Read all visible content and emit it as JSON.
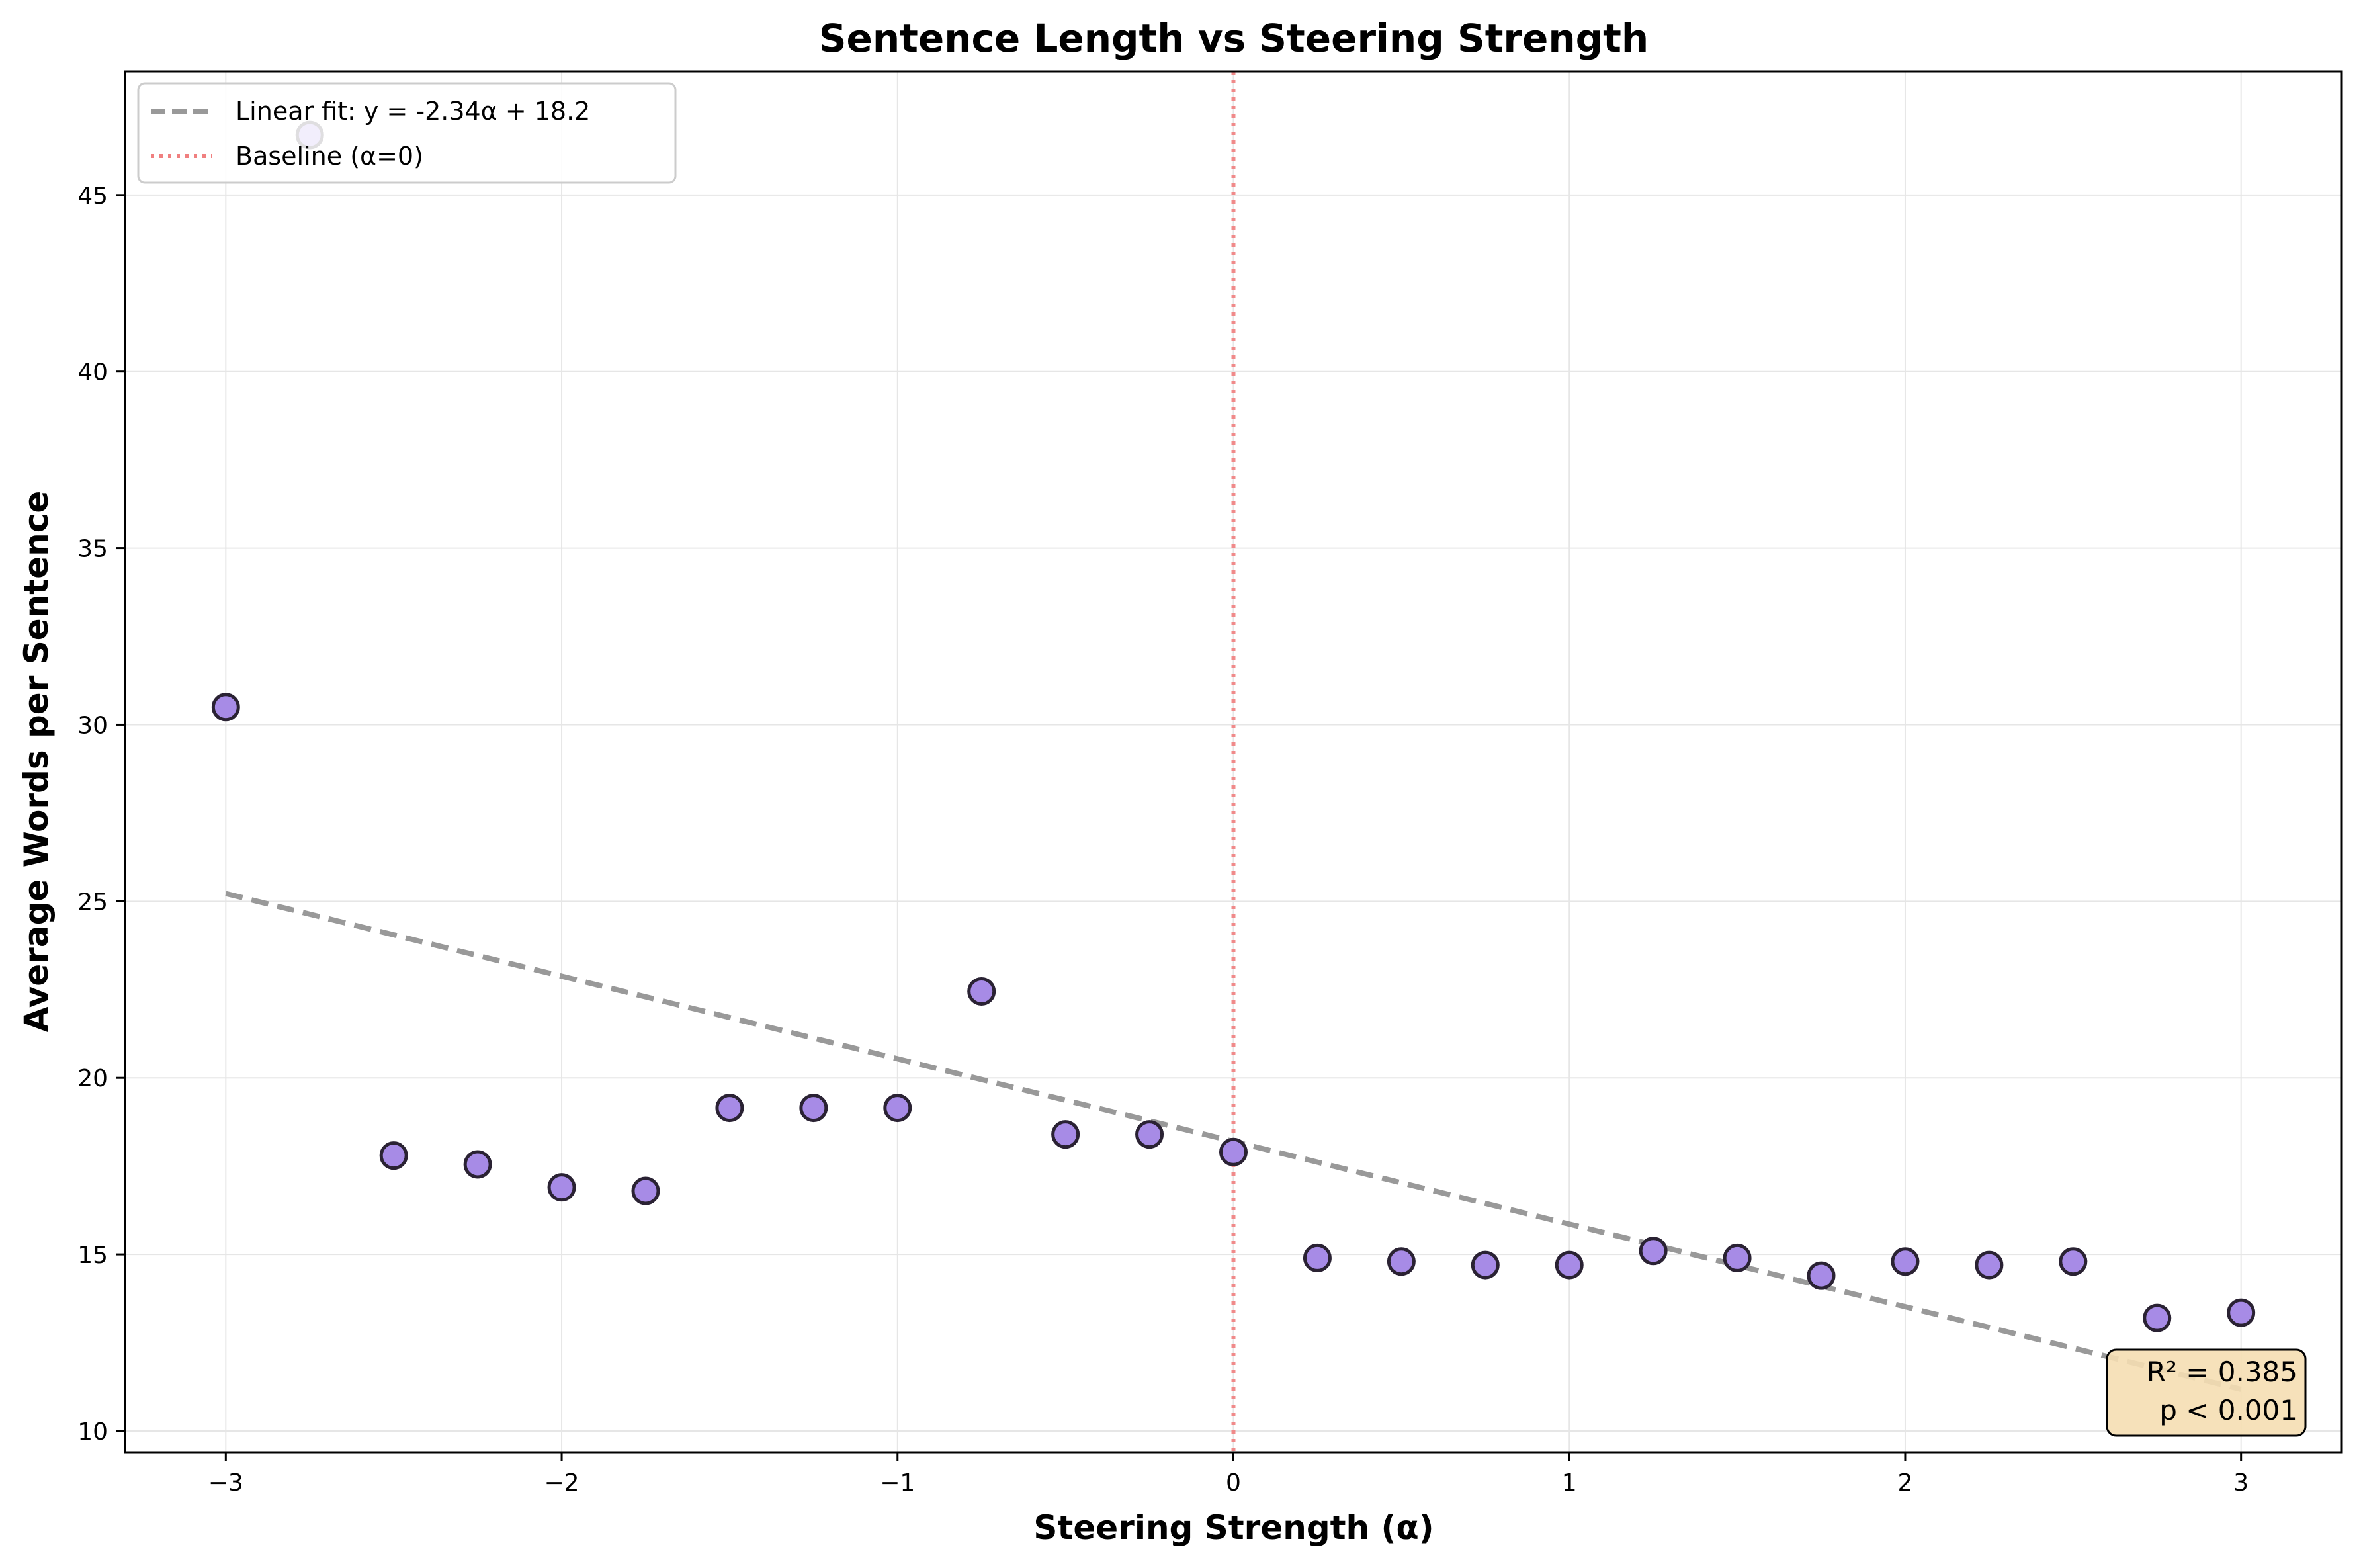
{
  "chart_data": {
    "type": "scatter",
    "title": "Sentence Length vs Steering Strength",
    "xlabel": "Steering Strength (α)",
    "ylabel": "Average Words per Sentence",
    "xlim": [
      -3.3,
      3.3
    ],
    "ylim": [
      9.4,
      48.5
    ],
    "x_ticks": [
      -3,
      -2,
      -1,
      0,
      1,
      2,
      3
    ],
    "x_tick_labels": [
      "−3",
      "−2",
      "−1",
      "0",
      "1",
      "2",
      "3"
    ],
    "y_ticks": [
      10,
      15,
      20,
      25,
      30,
      35,
      40,
      45
    ],
    "y_tick_labels": [
      "10",
      "15",
      "20",
      "25",
      "30",
      "35",
      "40",
      "45"
    ],
    "grid": true,
    "legend_position": "top-left",
    "points": [
      {
        "x": -3.0,
        "y": 30.5
      },
      {
        "x": -2.75,
        "y": 46.7
      },
      {
        "x": -2.5,
        "y": 17.8
      },
      {
        "x": -2.25,
        "y": 17.55
      },
      {
        "x": -2.0,
        "y": 16.9
      },
      {
        "x": -1.75,
        "y": 16.8
      },
      {
        "x": -1.5,
        "y": 19.15
      },
      {
        "x": -1.25,
        "y": 19.15
      },
      {
        "x": -1.0,
        "y": 19.15
      },
      {
        "x": -0.75,
        "y": 22.45
      },
      {
        "x": -0.5,
        "y": 18.4
      },
      {
        "x": -0.25,
        "y": 18.4
      },
      {
        "x": 0.0,
        "y": 17.9
      },
      {
        "x": 0.25,
        "y": 14.9
      },
      {
        "x": 0.5,
        "y": 14.8
      },
      {
        "x": 0.75,
        "y": 14.7
      },
      {
        "x": 1.0,
        "y": 14.7
      },
      {
        "x": 1.25,
        "y": 15.1
      },
      {
        "x": 1.5,
        "y": 14.9
      },
      {
        "x": 1.75,
        "y": 14.4
      },
      {
        "x": 2.0,
        "y": 14.8
      },
      {
        "x": 2.25,
        "y": 14.7
      },
      {
        "x": 2.5,
        "y": 14.8
      },
      {
        "x": 2.75,
        "y": 13.2
      },
      {
        "x": 3.0,
        "y": 13.35
      }
    ],
    "fit": {
      "slope": -2.34,
      "intercept": 18.2,
      "x_range": [
        -3,
        3
      ]
    },
    "baseline_x": 0,
    "legend": {
      "fit_label": "Linear fit: y = -2.34α + 18.2",
      "baseline_label": "Baseline (α=0)"
    },
    "stats": {
      "r2": "R² = 0.385",
      "p": "p < 0.001"
    },
    "colors": {
      "point_fill": "#a78be6",
      "point_edge": "#2a2233",
      "fit_line": "#999999",
      "baseline_line": "#f08080",
      "stats_box_fill": "#f5deb3"
    }
  }
}
